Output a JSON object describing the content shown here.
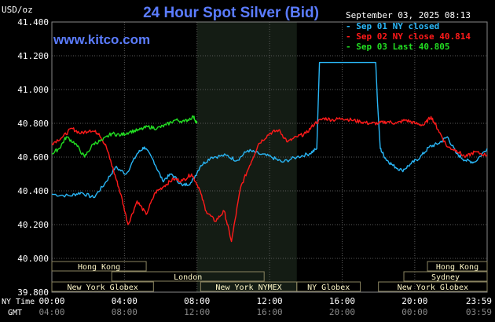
{
  "header": {
    "unit": "USD/oz",
    "title": "24 Hour Spot Silver (Bid)",
    "datetime": "September 03, 2025 08:13",
    "brand": "www.kitco.com"
  },
  "legend": [
    {
      "label": "Sep 01 NY closed",
      "color": "#29b6f6"
    },
    {
      "label": "Sep 02 NY close 40.814",
      "color": "#ff1a1a"
    },
    {
      "label": "Sep 03 Last 40.805",
      "color": "#22dd22"
    }
  ],
  "colors": {
    "background": "#000000",
    "grid": "#5a5a5a",
    "axis_text": "#ffffff",
    "title": "#5b7cff",
    "brand": "#5b7cff",
    "session_shade": "#141c14",
    "session_bar": "#fff8c8",
    "session_border": "#8a8460"
  },
  "time_labels": {
    "row1_label": "NY Time",
    "row2_label": "GMT",
    "row1": [
      "00:00",
      "04:00",
      "08:00",
      "12:00",
      "16:00",
      "20:00",
      "23:59"
    ],
    "row2": [
      "04:00",
      "08:00",
      "12:00",
      "16:00",
      "20:00",
      "00:00",
      "03:59"
    ]
  },
  "sessions": [
    {
      "label": "Hong Kong",
      "start": 0,
      "end": 5.2
    },
    {
      "label": "London",
      "start": 3.3,
      "end": 11.7
    },
    {
      "label": "New York Globex",
      "start": 0,
      "end": 5.6
    },
    {
      "label": "New York NYMEX",
      "start": 8.2,
      "end": 13.5
    },
    {
      "label": "NY Globex",
      "start": 13.5,
      "end": 17.0
    },
    {
      "label": "Hong Kong",
      "start": 20.7,
      "end": 23.99
    },
    {
      "label": "Sydney",
      "start": 19.4,
      "end": 23.99
    },
    {
      "label": "New York Globex",
      "start": 18.0,
      "end": 23.99
    }
  ],
  "chart_data": {
    "type": "line",
    "title": "24 Hour Spot Silver (Bid)",
    "ylabel": "USD/oz",
    "xlabel": "NY Time",
    "xlim": [
      0,
      23.99
    ],
    "ylim": [
      39.8,
      41.4
    ],
    "yticks": [
      "41.400",
      "41.200",
      "41.000",
      "40.800",
      "40.600",
      "40.400",
      "40.200",
      "40.000",
      "39.800"
    ],
    "ytick_values": [
      41.4,
      41.2,
      41.0,
      40.8,
      40.6,
      40.4,
      40.2,
      40.0,
      39.8
    ],
    "shaded_x": [
      8.0,
      13.5
    ],
    "grid": true,
    "series": [
      {
        "name": "Sep 01 NY closed",
        "color": "#29b6f6",
        "points": [
          [
            0,
            40.38
          ],
          [
            1,
            40.37
          ],
          [
            1.6,
            40.39
          ],
          [
            2.3,
            40.36
          ],
          [
            2.9,
            40.44
          ],
          [
            3.5,
            40.54
          ],
          [
            4.1,
            40.5
          ],
          [
            4.7,
            40.62
          ],
          [
            5.1,
            40.66
          ],
          [
            5.6,
            40.58
          ],
          [
            6.1,
            40.46
          ],
          [
            6.6,
            40.5
          ],
          [
            7.2,
            40.43
          ],
          [
            7.7,
            40.45
          ],
          [
            8.2,
            40.55
          ],
          [
            8.8,
            40.6
          ],
          [
            9.6,
            40.61
          ],
          [
            10.2,
            40.58
          ],
          [
            10.8,
            40.64
          ],
          [
            11.4,
            40.62
          ],
          [
            12.1,
            40.6
          ],
          [
            12.7,
            40.57
          ],
          [
            13.5,
            40.6
          ],
          [
            14.2,
            40.62
          ],
          [
            14.6,
            40.65
          ],
          [
            14.75,
            41.16
          ],
          [
            17.85,
            41.16
          ],
          [
            17.95,
            40.92
          ],
          [
            18.1,
            40.65
          ],
          [
            18.4,
            40.59
          ],
          [
            18.8,
            40.55
          ],
          [
            19.3,
            40.52
          ],
          [
            19.8,
            40.56
          ],
          [
            20.3,
            40.6
          ],
          [
            20.8,
            40.66
          ],
          [
            21.3,
            40.68
          ],
          [
            21.8,
            40.72
          ],
          [
            22.3,
            40.62
          ],
          [
            22.8,
            40.58
          ],
          [
            23.3,
            40.57
          ],
          [
            23.99,
            40.65
          ]
        ]
      },
      {
        "name": "Sep 02 NY close 40.814",
        "color": "#ff1a1a",
        "points": [
          [
            0,
            40.68
          ],
          [
            0.6,
            40.72
          ],
          [
            1.1,
            40.77
          ],
          [
            1.6,
            40.74
          ],
          [
            2.1,
            40.76
          ],
          [
            2.6,
            40.74
          ],
          [
            3.0,
            40.66
          ],
          [
            3.4,
            40.52
          ],
          [
            3.8,
            40.38
          ],
          [
            4.2,
            40.2
          ],
          [
            4.7,
            40.34
          ],
          [
            5.2,
            40.26
          ],
          [
            5.7,
            40.39
          ],
          [
            6.2,
            40.43
          ],
          [
            6.7,
            40.47
          ],
          [
            7.2,
            40.46
          ],
          [
            7.7,
            40.5
          ],
          [
            8.1,
            40.42
          ],
          [
            8.5,
            40.28
          ],
          [
            9.0,
            40.22
          ],
          [
            9.5,
            40.28
          ],
          [
            9.9,
            40.1
          ],
          [
            10.4,
            40.42
          ],
          [
            10.9,
            40.55
          ],
          [
            11.4,
            40.68
          ],
          [
            12.0,
            40.74
          ],
          [
            12.5,
            40.76
          ],
          [
            13.0,
            40.69
          ],
          [
            13.5,
            40.72
          ],
          [
            14.0,
            40.74
          ],
          [
            14.5,
            40.8
          ],
          [
            15.0,
            40.83
          ],
          [
            15.5,
            40.82
          ],
          [
            16.0,
            40.83
          ],
          [
            16.5,
            40.82
          ],
          [
            17.0,
            40.81
          ],
          [
            17.5,
            40.8
          ],
          [
            18.0,
            40.8
          ],
          [
            18.5,
            40.81
          ],
          [
            19.0,
            40.8
          ],
          [
            19.5,
            40.82
          ],
          [
            20.0,
            40.8
          ],
          [
            20.5,
            40.79
          ],
          [
            20.9,
            40.84
          ],
          [
            21.3,
            40.76
          ],
          [
            21.8,
            40.66
          ],
          [
            22.3,
            40.64
          ],
          [
            22.8,
            40.6
          ],
          [
            23.3,
            40.63
          ],
          [
            23.99,
            40.61
          ]
        ]
      },
      {
        "name": "Sep 03 Last 40.805",
        "color": "#22dd22",
        "points": [
          [
            0,
            40.62
          ],
          [
            0.4,
            40.65
          ],
          [
            0.8,
            40.72
          ],
          [
            1.3,
            40.68
          ],
          [
            1.8,
            40.6
          ],
          [
            2.3,
            40.68
          ],
          [
            2.8,
            40.7
          ],
          [
            3.3,
            40.74
          ],
          [
            3.8,
            40.73
          ],
          [
            4.3,
            40.75
          ],
          [
            4.8,
            40.76
          ],
          [
            5.3,
            40.78
          ],
          [
            5.8,
            40.77
          ],
          [
            6.3,
            40.79
          ],
          [
            6.8,
            40.82
          ],
          [
            7.3,
            40.81
          ],
          [
            7.8,
            40.84
          ],
          [
            8.0,
            40.8
          ]
        ]
      }
    ]
  }
}
